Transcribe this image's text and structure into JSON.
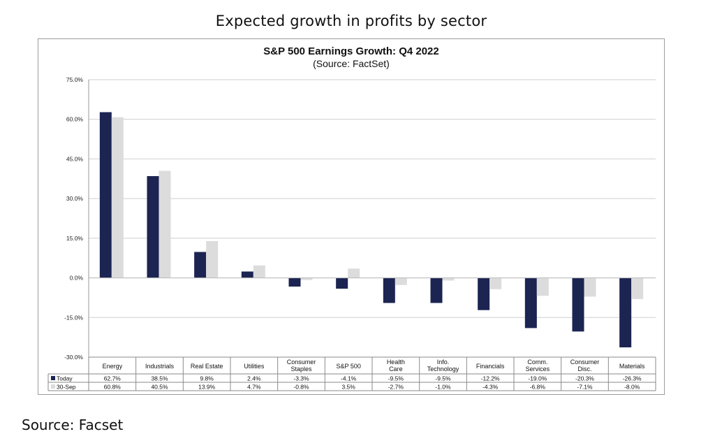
{
  "page": {
    "title": "Expected growth in profits by sector",
    "source_label": "Source:",
    "source_value": "Facset"
  },
  "chart_data": {
    "type": "bar",
    "title": "S&P 500 Earnings Growth: Q4 2022",
    "subtitle": "(Source: FactSet)",
    "xlabel": "",
    "ylabel": "",
    "ylim": [
      -30,
      75
    ],
    "yticks": [
      -30,
      -15,
      0,
      15,
      30,
      45,
      60,
      75
    ],
    "ytick_labels": [
      "-30.0%",
      "-15.0%",
      "0.0%",
      "15.0%",
      "30.0%",
      "45.0%",
      "60.0%",
      "75.0%"
    ],
    "grid": true,
    "legend": "data-table-left",
    "categories": [
      [
        "Energy"
      ],
      [
        "Industrials"
      ],
      [
        "Real Estate"
      ],
      [
        "Utilities"
      ],
      [
        "Consumer",
        "Staples"
      ],
      [
        "S&P 500"
      ],
      [
        "Health",
        "Care"
      ],
      [
        "Info.",
        "Technology"
      ],
      [
        "Financials"
      ],
      [
        "Comm.",
        "Services"
      ],
      [
        "Consumer",
        "Disc."
      ],
      [
        "Materials"
      ]
    ],
    "series": [
      {
        "name": "Today",
        "color": "#1c2452",
        "values": [
          62.7,
          38.5,
          9.8,
          2.4,
          -3.3,
          -4.1,
          -9.5,
          -9.5,
          -12.2,
          -19.0,
          -20.3,
          -26.3
        ],
        "labels": [
          "62.7%",
          "38.5%",
          "9.8%",
          "2.4%",
          "-3.3%",
          "-4.1%",
          "-9.5%",
          "-9.5%",
          "-12.2%",
          "-19.0%",
          "-20.3%",
          "-26.3%"
        ]
      },
      {
        "name": "30-Sep",
        "color": "#dcdcdc",
        "values": [
          60.8,
          40.5,
          13.9,
          4.7,
          -0.8,
          3.5,
          -2.7,
          -1.0,
          -4.3,
          -6.8,
          -7.1,
          -8.0
        ],
        "labels": [
          "60.8%",
          "40.5%",
          "13.9%",
          "4.7%",
          "-0.8%",
          "3.5%",
          "-2.7%",
          "-1.0%",
          "-4.3%",
          "-6.8%",
          "-7.1%",
          "-8.0%"
        ]
      }
    ]
  }
}
